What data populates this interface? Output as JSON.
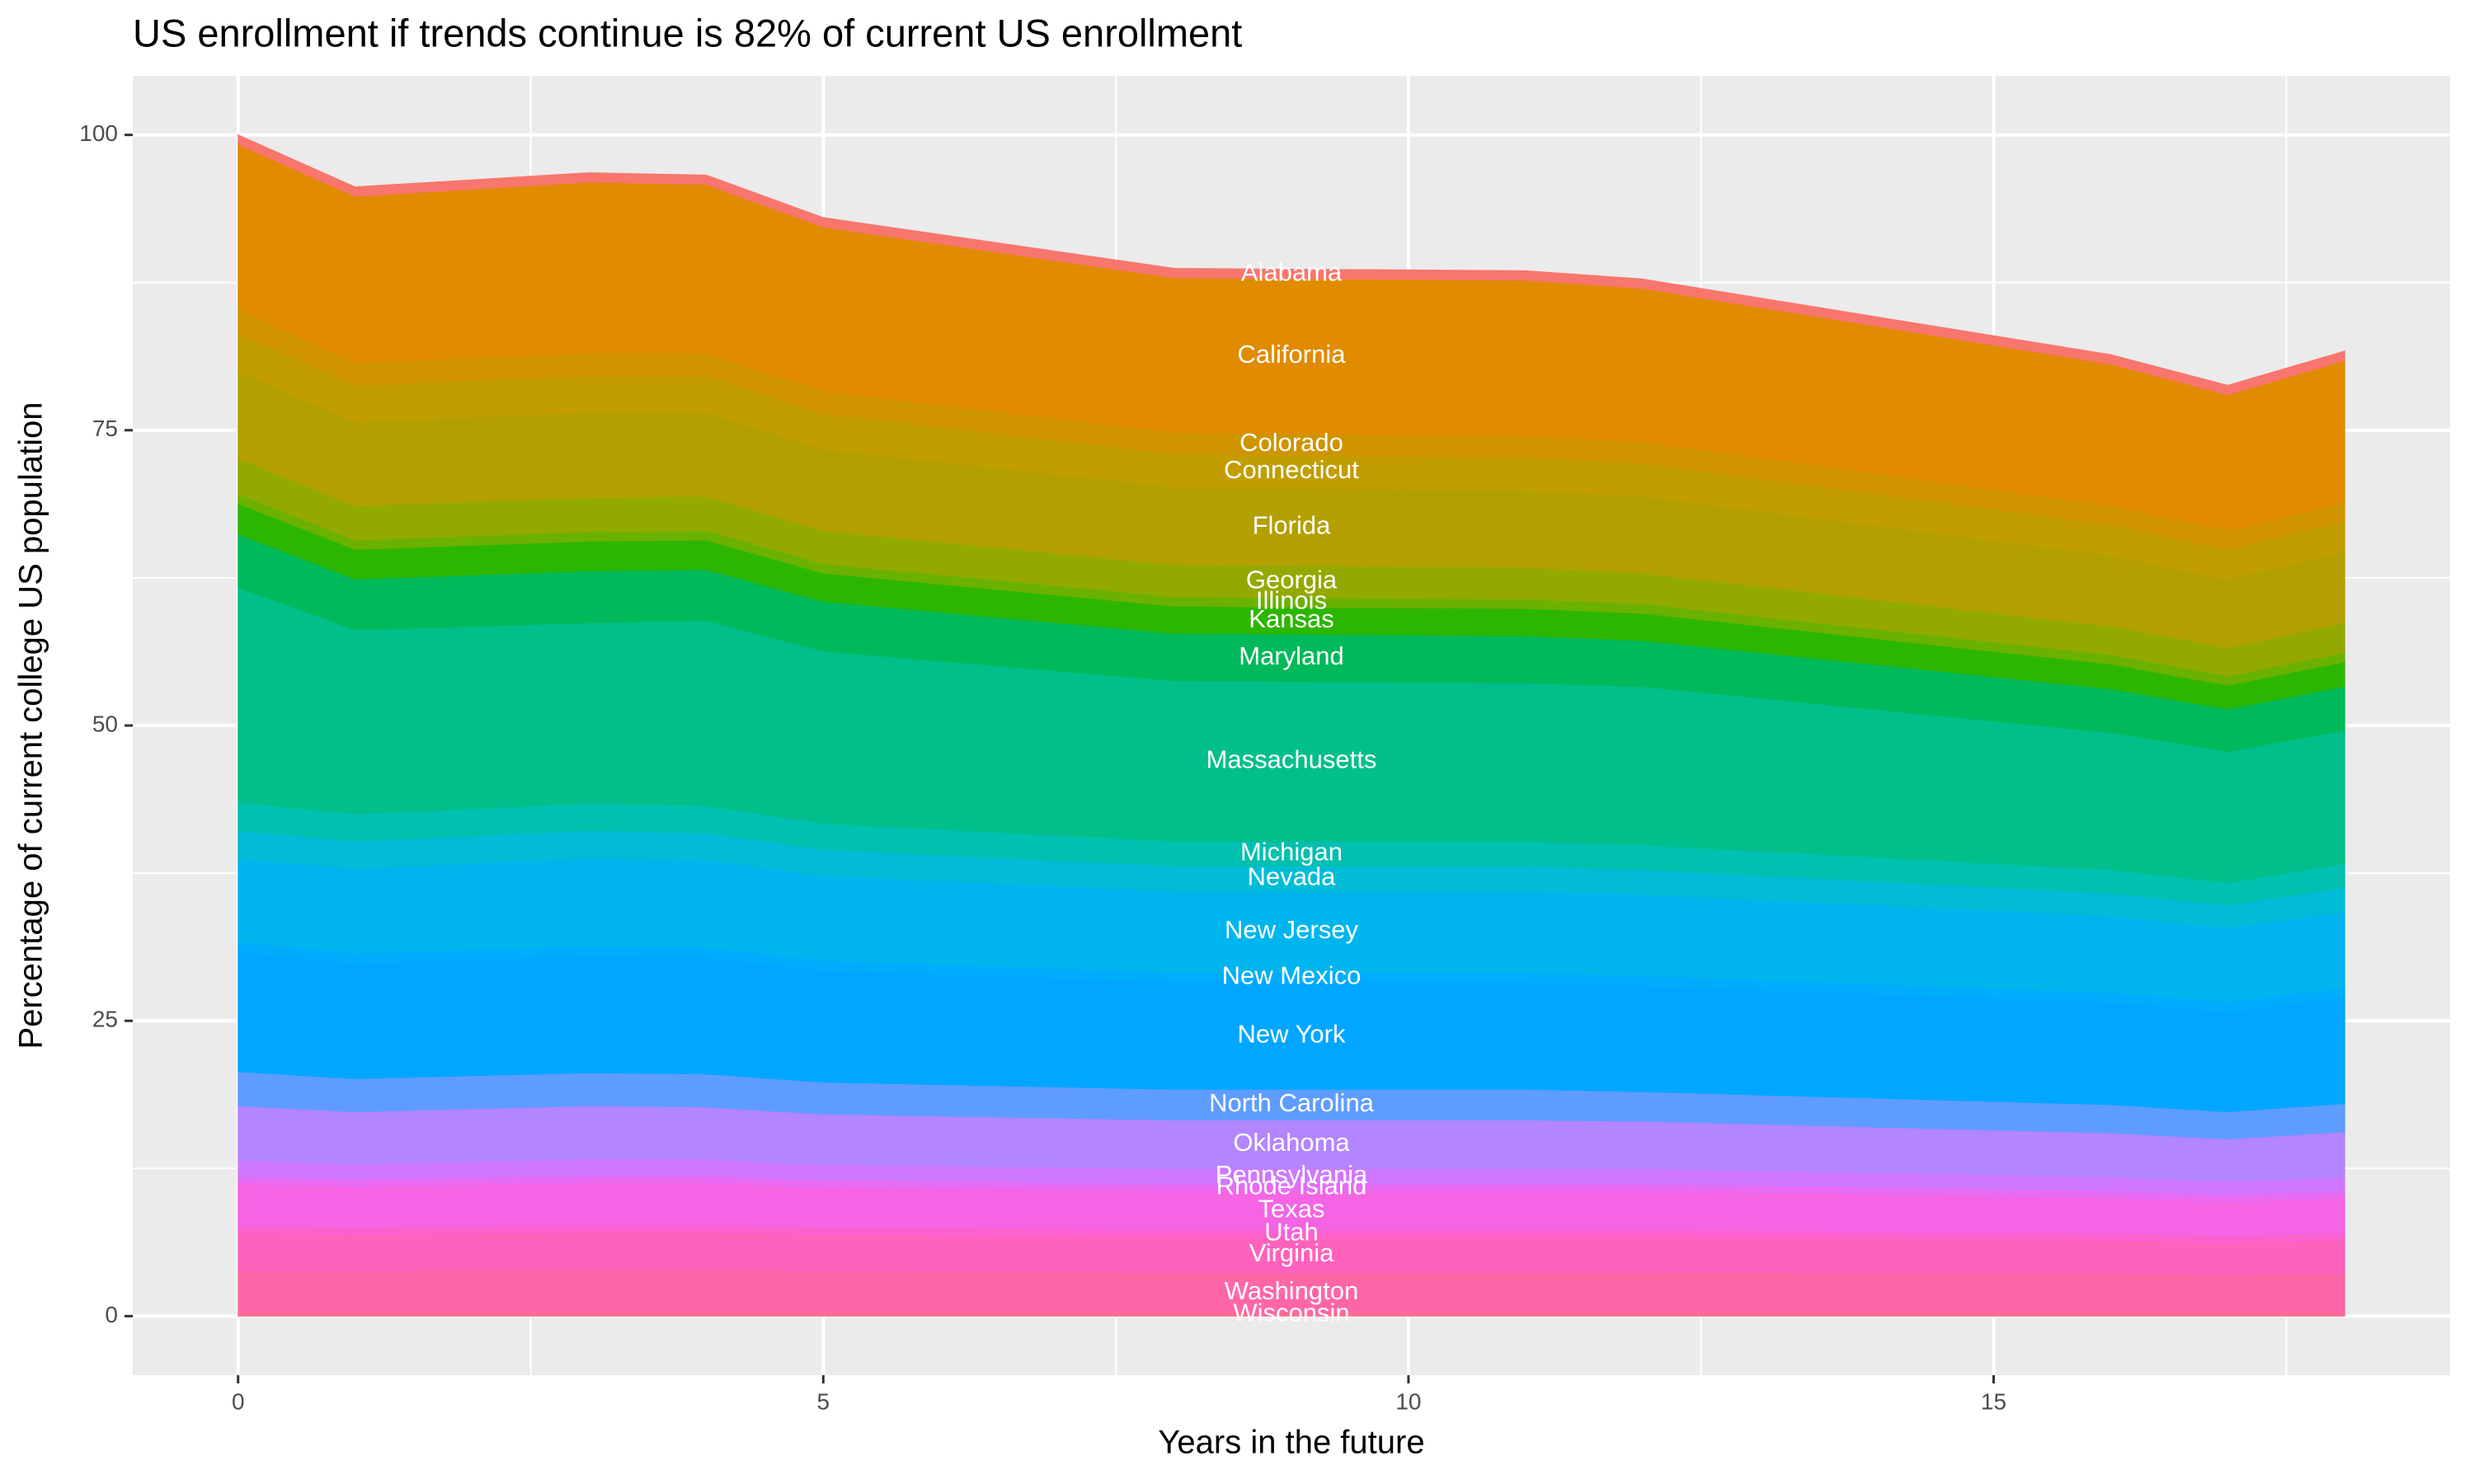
{
  "chart_data": {
    "type": "stacked_area",
    "title": "US enrollment if trends continue is 82% of current US enrollment",
    "x_label": "Years in the future",
    "y_label": "Percentage of current college US population",
    "x": [
      0,
      1,
      3,
      4,
      5,
      8,
      11,
      12,
      16,
      17,
      18
    ],
    "xlim": [
      -0.9,
      18.9
    ],
    "xticks": [
      0,
      5,
      10,
      15
    ],
    "ylim": [
      -5,
      105
    ],
    "yticks": [
      0,
      25,
      50,
      75,
      100
    ],
    "grid": true,
    "series": [
      {
        "name": "Alabama",
        "color": "#F8766D",
        "values": [
          0.8,
          0.8,
          0.8,
          0.8,
          0.8,
          0.8,
          0.8,
          0.8,
          0.8,
          0.8,
          0.8
        ]
      },
      {
        "name": "California",
        "color": "#E08B00",
        "values": [
          14.0,
          14.1,
          14.5,
          14.3,
          13.9,
          13.1,
          13.2,
          13.0,
          12.0,
          11.5,
          12.0
        ]
      },
      {
        "name": "Colorado",
        "color": "#CF9400",
        "values": [
          2.0,
          1.9,
          1.9,
          1.9,
          1.9,
          1.8,
          1.8,
          1.8,
          1.6,
          1.6,
          1.6
        ]
      },
      {
        "name": "Connecticut",
        "color": "#C29D00",
        "values": [
          3.2,
          3.1,
          3.1,
          3.1,
          3.0,
          2.8,
          2.8,
          2.8,
          2.6,
          2.5,
          2.6
        ]
      },
      {
        "name": "Florida",
        "color": "#B3A000",
        "values": [
          7.4,
          7.1,
          7.2,
          7.1,
          6.9,
          6.6,
          6.5,
          6.5,
          6.0,
          5.8,
          6.0
        ]
      },
      {
        "name": "Georgia",
        "color": "#93A900",
        "values": [
          3.0,
          2.9,
          2.9,
          2.9,
          2.8,
          2.7,
          2.7,
          2.6,
          2.4,
          2.4,
          2.5
        ]
      },
      {
        "name": "Illinois",
        "color": "#6BB100",
        "values": [
          0.8,
          0.8,
          0.8,
          0.8,
          0.8,
          0.8,
          0.8,
          0.8,
          0.8,
          0.8,
          0.8
        ]
      },
      {
        "name": "Kansas",
        "color": "#2DB600",
        "values": [
          2.6,
          2.5,
          2.5,
          2.5,
          2.4,
          2.3,
          2.3,
          2.3,
          2.1,
          2.0,
          2.1
        ]
      },
      {
        "name": "Maryland",
        "color": "#00B95A",
        "values": [
          4.5,
          4.3,
          4.4,
          4.3,
          4.2,
          4.0,
          4.0,
          3.9,
          3.7,
          3.6,
          3.7
        ]
      },
      {
        "name": "Massachusetts",
        "color": "#00BF8A",
        "values": [
          18.2,
          15.6,
          15.3,
          15.7,
          14.6,
          13.6,
          13.4,
          13.4,
          11.6,
          11.1,
          11.3
        ]
      },
      {
        "name": "Michigan",
        "color": "#00C0B0",
        "values": [
          2.4,
          2.3,
          2.3,
          2.3,
          2.2,
          2.1,
          2.1,
          2.1,
          2.0,
          1.9,
          2.0
        ]
      },
      {
        "name": "Nevada",
        "color": "#00BCD6",
        "values": [
          2.4,
          2.3,
          2.3,
          2.3,
          2.2,
          2.1,
          2.1,
          2.1,
          1.9,
          1.9,
          2.0
        ]
      },
      {
        "name": "New Jersey",
        "color": "#00B5EE",
        "values": [
          7.0,
          7.2,
          7.5,
          7.4,
          7.2,
          6.9,
          6.9,
          6.9,
          6.5,
          6.3,
          6.5
        ]
      },
      {
        "name": "New Mexico",
        "color": "#00ACFC",
        "values": [
          0.8,
          0.8,
          0.8,
          0.8,
          0.8,
          0.8,
          0.8,
          0.8,
          0.8,
          0.8,
          0.8
        ]
      },
      {
        "name": "New York",
        "color": "#00A6FF",
        "values": [
          10.2,
          9.8,
          9.9,
          9.9,
          9.5,
          9.1,
          9.1,
          9.0,
          8.7,
          8.5,
          9.0
        ]
      },
      {
        "name": "North Carolina",
        "color": "#5F9CFF",
        "values": [
          2.9,
          2.8,
          2.8,
          2.8,
          2.7,
          2.6,
          2.6,
          2.5,
          2.4,
          2.3,
          2.4
        ]
      },
      {
        "name": "Oklahoma",
        "color": "#B385FF",
        "values": [
          4.6,
          4.4,
          4.5,
          4.4,
          4.3,
          4.1,
          4.1,
          4.0,
          3.7,
          3.6,
          3.8
        ]
      },
      {
        "name": "Pennsylvania",
        "color": "#CF78FF",
        "values": [
          1.4,
          1.3,
          1.4,
          1.4,
          1.3,
          1.3,
          1.3,
          1.3,
          1.2,
          1.1,
          1.2
        ]
      },
      {
        "name": "Rhode Island",
        "color": "#E76BF3",
        "values": [
          0.6,
          0.6,
          0.6,
          0.6,
          0.6,
          0.6,
          0.6,
          0.6,
          0.6,
          0.6,
          0.6
        ]
      },
      {
        "name": "Texas",
        "color": "#F564E3",
        "values": [
          3.6,
          3.5,
          3.6,
          3.6,
          3.4,
          3.3,
          3.3,
          3.3,
          3.0,
          2.9,
          3.0
        ]
      },
      {
        "name": "Utah",
        "color": "#FC61D0",
        "values": [
          0.6,
          0.6,
          0.6,
          0.6,
          0.6,
          0.6,
          0.6,
          0.6,
          0.6,
          0.6,
          0.6
        ]
      },
      {
        "name": "Virginia",
        "color": "#FF62BC",
        "values": [
          3.2,
          3.1,
          3.2,
          3.2,
          3.1,
          3.0,
          3.0,
          3.0,
          2.8,
          2.7,
          2.8
        ]
      },
      {
        "name": "Washington",
        "color": "#FF66A8",
        "values": [
          3.5,
          3.5,
          3.6,
          3.6,
          3.5,
          3.4,
          3.4,
          3.4,
          3.3,
          3.2,
          3.3
        ]
      },
      {
        "name": "Wisconsin",
        "color": "#FF6C91",
        "values": [
          0.3,
          0.3,
          0.3,
          0.3,
          0.3,
          0.3,
          0.3,
          0.3,
          0.3,
          0.3,
          0.3
        ]
      }
    ]
  }
}
